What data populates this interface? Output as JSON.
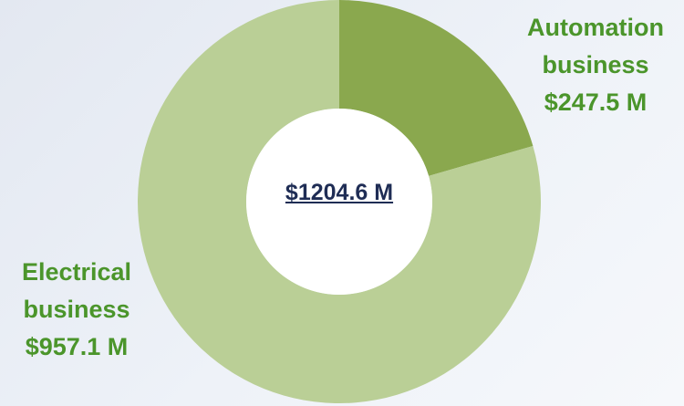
{
  "chart_data": {
    "type": "donut",
    "categories": [
      "Automation business",
      "Electrical business"
    ],
    "values": [
      247.5,
      957.1
    ],
    "value_labels": [
      "$247.5 M",
      "$957.1 M"
    ],
    "colors": [
      "#8aa84e",
      "#bacf96"
    ],
    "center_label": "$1204.6 M"
  }
}
